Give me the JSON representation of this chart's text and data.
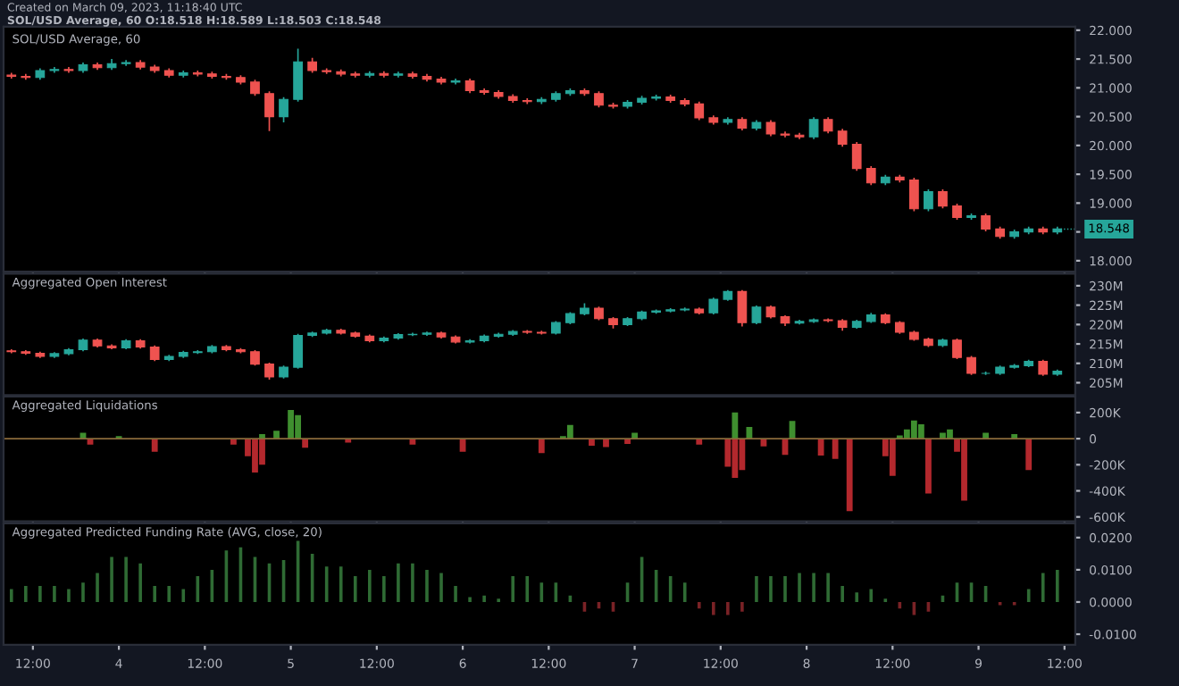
{
  "chart_data": [
    {
      "type": "candlestick",
      "title": "SOL/USD Average, 60",
      "annotations": [
        "Created on March 09, 2023, 11:18:40 UTC",
        "SOL/USD Average, 60 O:18.518 H:18.589 L:18.503 C:18.548",
        {
          "text": "18.548",
          "x": "2023-03-09T11:00",
          "y": 18.548
        }
      ],
      "x": [
        "2023-03-03T09:00",
        "2023-03-03T11:00",
        "2023-03-03T13:00",
        "2023-03-03T15:00",
        "2023-03-03T17:00",
        "2023-03-03T19:00",
        "2023-03-03T21:00",
        "2023-03-03T23:00",
        "2023-03-04T01:00",
        "2023-03-04T03:00",
        "2023-03-04T05:00",
        "2023-03-04T07:00",
        "2023-03-04T09:00",
        "2023-03-04T11:00",
        "2023-03-04T13:00",
        "2023-03-04T15:00",
        "2023-03-04T17:00",
        "2023-03-04T19:00",
        "2023-03-04T21:00",
        "2023-03-04T23:00",
        "2023-03-05T01:00",
        "2023-03-05T03:00",
        "2023-03-05T05:00",
        "2023-03-05T07:00",
        "2023-03-05T09:00",
        "2023-03-05T11:00",
        "2023-03-05T13:00",
        "2023-03-05T15:00",
        "2023-03-05T17:00",
        "2023-03-05T19:00",
        "2023-03-05T21:00",
        "2023-03-05T23:00",
        "2023-03-06T01:00",
        "2023-03-06T03:00",
        "2023-03-06T05:00",
        "2023-03-06T07:00",
        "2023-03-06T09:00",
        "2023-03-06T11:00",
        "2023-03-06T13:00",
        "2023-03-06T15:00",
        "2023-03-06T17:00",
        "2023-03-06T19:00",
        "2023-03-06T21:00",
        "2023-03-06T23:00",
        "2023-03-07T01:00",
        "2023-03-07T03:00",
        "2023-03-07T05:00",
        "2023-03-07T07:00",
        "2023-03-07T09:00",
        "2023-03-07T11:00",
        "2023-03-07T13:00",
        "2023-03-07T15:00",
        "2023-03-07T17:00",
        "2023-03-07T19:00",
        "2023-03-07T21:00",
        "2023-03-07T23:00",
        "2023-03-08T01:00",
        "2023-03-08T03:00",
        "2023-03-08T05:00",
        "2023-03-08T07:00",
        "2023-03-08T09:00",
        "2023-03-08T11:00",
        "2023-03-08T13:00",
        "2023-03-08T15:00",
        "2023-03-08T17:00",
        "2023-03-08T19:00",
        "2023-03-08T21:00",
        "2023-03-08T23:00",
        "2023-03-09T01:00",
        "2023-03-09T03:00",
        "2023-03-09T05:00",
        "2023-03-09T07:00",
        "2023-03-09T09:00",
        "2023-03-09T11:00"
      ],
      "ohlc": [
        [
          21.22,
          21.26,
          21.16,
          21.2
        ],
        [
          21.2,
          21.24,
          21.14,
          21.18
        ],
        [
          21.18,
          21.34,
          21.14,
          21.3
        ],
        [
          21.3,
          21.36,
          21.26,
          21.32
        ],
        [
          21.32,
          21.36,
          21.26,
          21.3
        ],
        [
          21.3,
          21.44,
          21.26,
          21.4
        ],
        [
          21.4,
          21.44,
          21.31,
          21.35
        ],
        [
          21.35,
          21.5,
          21.31,
          21.42
        ],
        [
          21.42,
          21.48,
          21.38,
          21.44
        ],
        [
          21.44,
          21.48,
          21.32,
          21.36
        ],
        [
          21.36,
          21.4,
          21.26,
          21.3
        ],
        [
          21.3,
          21.34,
          21.18,
          21.22
        ],
        [
          21.22,
          21.3,
          21.18,
          21.26
        ],
        [
          21.26,
          21.3,
          21.2,
          21.24
        ],
        [
          21.24,
          21.28,
          21.16,
          21.2
        ],
        [
          21.2,
          21.24,
          21.14,
          21.18
        ],
        [
          21.18,
          21.22,
          21.06,
          21.1
        ],
        [
          21.1,
          21.14,
          20.86,
          20.9
        ],
        [
          20.9,
          20.94,
          20.25,
          20.5
        ],
        [
          20.5,
          20.84,
          20.4,
          20.8
        ],
        [
          20.8,
          21.68,
          20.76,
          21.45
        ],
        [
          21.45,
          21.52,
          21.26,
          21.3
        ],
        [
          21.3,
          21.34,
          21.24,
          21.28
        ],
        [
          21.28,
          21.32,
          21.2,
          21.24
        ],
        [
          21.24,
          21.28,
          21.18,
          21.22
        ],
        [
          21.22,
          21.29,
          21.18,
          21.25
        ],
        [
          21.25,
          21.29,
          21.18,
          21.22
        ],
        [
          21.22,
          21.28,
          21.18,
          21.24
        ],
        [
          21.24,
          21.28,
          21.16,
          21.2
        ],
        [
          21.2,
          21.24,
          21.11,
          21.15
        ],
        [
          21.15,
          21.19,
          21.06,
          21.1
        ],
        [
          21.1,
          21.16,
          21.06,
          21.12
        ],
        [
          21.12,
          21.16,
          20.91,
          20.95
        ],
        [
          20.95,
          20.99,
          20.88,
          20.92
        ],
        [
          20.92,
          20.96,
          20.81,
          20.85
        ],
        [
          20.85,
          20.89,
          20.74,
          20.78
        ],
        [
          20.78,
          20.82,
          20.72,
          20.76
        ],
        [
          20.76,
          20.84,
          20.72,
          20.8
        ],
        [
          20.8,
          20.94,
          20.76,
          20.9
        ],
        [
          20.9,
          20.99,
          20.86,
          20.95
        ],
        [
          20.95,
          20.99,
          20.86,
          20.9
        ],
        [
          20.9,
          20.94,
          20.66,
          20.7
        ],
        [
          20.7,
          20.74,
          20.64,
          20.68
        ],
        [
          20.68,
          20.79,
          20.64,
          20.75
        ],
        [
          20.75,
          20.86,
          20.71,
          20.82
        ],
        [
          20.82,
          20.88,
          20.78,
          20.84
        ],
        [
          20.84,
          20.88,
          20.74,
          20.78
        ],
        [
          20.78,
          20.82,
          20.68,
          20.72
        ],
        [
          20.72,
          20.76,
          20.44,
          20.48
        ],
        [
          20.48,
          20.52,
          20.36,
          20.4
        ],
        [
          20.4,
          20.49,
          20.36,
          20.45
        ],
        [
          20.45,
          20.49,
          20.26,
          20.3
        ],
        [
          20.3,
          20.44,
          20.26,
          20.4
        ],
        [
          20.4,
          20.44,
          20.16,
          20.2
        ],
        [
          20.2,
          20.24,
          20.14,
          20.18
        ],
        [
          20.18,
          20.22,
          20.11,
          20.15
        ],
        [
          20.15,
          20.49,
          20.11,
          20.45
        ],
        [
          20.45,
          20.49,
          20.21,
          20.25
        ],
        [
          20.25,
          20.29,
          19.98,
          20.02
        ],
        [
          20.02,
          20.06,
          19.56,
          19.6
        ],
        [
          19.6,
          19.64,
          19.31,
          19.35
        ],
        [
          19.35,
          19.49,
          19.31,
          19.45
        ],
        [
          19.45,
          19.49,
          19.36,
          19.4
        ],
        [
          19.4,
          19.44,
          18.86,
          18.9
        ],
        [
          18.9,
          19.24,
          18.86,
          19.2
        ],
        [
          19.2,
          19.24,
          18.91,
          18.95
        ],
        [
          18.95,
          18.99,
          18.71,
          18.75
        ],
        [
          18.75,
          18.82,
          18.71,
          18.78
        ],
        [
          18.78,
          18.82,
          18.51,
          18.55
        ],
        [
          18.55,
          18.59,
          18.38,
          18.42
        ],
        [
          18.42,
          18.54,
          18.38,
          18.5
        ],
        [
          18.5,
          18.59,
          18.46,
          18.55
        ],
        [
          18.55,
          18.59,
          18.46,
          18.5
        ],
        [
          18.5,
          18.59,
          18.46,
          18.55
        ]
      ],
      "colors": [
        "#ef5350",
        "#ef5350",
        "#26a69a",
        "#26a69a",
        "#ef5350",
        "#26a69a",
        "#ef5350",
        "#26a69a",
        "#26a69a",
        "#ef5350",
        "#ef5350",
        "#ef5350",
        "#26a69a",
        "#ef5350",
        "#ef5350",
        "#ef5350",
        "#ef5350",
        "#ef5350",
        "#ef5350",
        "#26a69a",
        "#26a69a",
        "#ef5350",
        "#ef5350",
        "#ef5350",
        "#ef5350",
        "#26a69a",
        "#ef5350",
        "#26a69a",
        "#ef5350",
        "#ef5350",
        "#ef5350",
        "#26a69a",
        "#ef5350",
        "#ef5350",
        "#ef5350",
        "#ef5350",
        "#ef5350",
        "#26a69a",
        "#26a69a",
        "#26a69a",
        "#ef5350",
        "#ef5350",
        "#ef5350",
        "#26a69a",
        "#26a69a",
        "#26a69a",
        "#ef5350",
        "#ef5350",
        "#ef5350",
        "#ef5350",
        "#26a69a",
        "#ef5350",
        "#26a69a",
        "#ef5350",
        "#ef5350",
        "#ef5350",
        "#26a69a",
        "#ef5350",
        "#ef5350",
        "#ef5350",
        "#ef5350",
        "#26a69a",
        "#ef5350",
        "#ef5350",
        "#26a69a",
        "#ef5350",
        "#ef5350",
        "#26a69a",
        "#ef5350",
        "#ef5350",
        "#26a69a",
        "#26a69a",
        "#ef5350",
        "#26a69a"
      ],
      "xlim": [
        "2023-03-03T07:54",
        "2023-03-09T13:30"
      ],
      "ylim": [
        17.81,
        22.06
      ],
      "xticks": [
        {
          "value": "2023-03-03T12:00",
          "label": null
        },
        {
          "value": "2023-03-04",
          "label": null
        },
        {
          "value": "2023-03-04T12:00",
          "label": null
        },
        {
          "value": "2023-03-05",
          "label": null
        },
        {
          "value": "2023-03-05T12:00",
          "label": null
        },
        {
          "value": "2023-03-06",
          "label": null
        },
        {
          "value": "2023-03-06T12:00",
          "label": null
        },
        {
          "value": "2023-03-07",
          "label": null
        },
        {
          "value": "2023-03-07T12:00",
          "label": null
        },
        {
          "value": "2023-03-08",
          "label": null
        },
        {
          "value": "2023-03-08T12:00",
          "label": null
        },
        {
          "value": "2023-03-09",
          "label": null
        },
        {
          "value": "2023-03-09T12:00",
          "label": null
        }
      ],
      "yticks": [
        {
          "value": 18,
          "label": "18.000"
        },
        {
          "value": 18.5,
          "label": null
        },
        {
          "value": 19,
          "label": "19.000"
        },
        {
          "value": 19.5,
          "label": "19.500"
        },
        {
          "value": 20,
          "label": "20.000"
        },
        {
          "value": 20.5,
          "label": "20.500"
        },
        {
          "value": 21,
          "label": "21.000"
        },
        {
          "value": 21.5,
          "label": "21.500"
        },
        {
          "value": 22,
          "label": "22.000"
        }
      ],
      "tick_labels": "y",
      "grid": false,
      "legend": false
    },
    {
      "type": "candlestick",
      "title": "Aggregated Open Interest",
      "x": [
        "2023-03-03T09:00",
        "2023-03-03T11:00",
        "2023-03-03T13:00",
        "2023-03-03T15:00",
        "2023-03-03T17:00",
        "2023-03-03T19:00",
        "2023-03-03T21:00",
        "2023-03-03T23:00",
        "2023-03-04T01:00",
        "2023-03-04T03:00",
        "2023-03-04T05:00",
        "2023-03-04T07:00",
        "2023-03-04T09:00",
        "2023-03-04T11:00",
        "2023-03-04T13:00",
        "2023-03-04T15:00",
        "2023-03-04T17:00",
        "2023-03-04T19:00",
        "2023-03-04T21:00",
        "2023-03-04T23:00",
        "2023-03-05T01:00",
        "2023-03-05T03:00",
        "2023-03-05T05:00",
        "2023-03-05T07:00",
        "2023-03-05T09:00",
        "2023-03-05T11:00",
        "2023-03-05T13:00",
        "2023-03-05T15:00",
        "2023-03-05T17:00",
        "2023-03-05T19:00",
        "2023-03-05T21:00",
        "2023-03-05T23:00",
        "2023-03-06T01:00",
        "2023-03-06T03:00",
        "2023-03-06T05:00",
        "2023-03-06T07:00",
        "2023-03-06T09:00",
        "2023-03-06T11:00",
        "2023-03-06T13:00",
        "2023-03-06T15:00",
        "2023-03-06T17:00",
        "2023-03-06T19:00",
        "2023-03-06T21:00",
        "2023-03-06T23:00",
        "2023-03-07T01:00",
        "2023-03-07T03:00",
        "2023-03-07T05:00",
        "2023-03-07T07:00",
        "2023-03-07T09:00",
        "2023-03-07T11:00",
        "2023-03-07T13:00",
        "2023-03-07T15:00",
        "2023-03-07T17:00",
        "2023-03-07T19:00",
        "2023-03-07T21:00",
        "2023-03-07T23:00",
        "2023-03-08T01:00",
        "2023-03-08T03:00",
        "2023-03-08T05:00",
        "2023-03-08T07:00",
        "2023-03-08T09:00",
        "2023-03-08T11:00",
        "2023-03-08T13:00",
        "2023-03-08T15:00",
        "2023-03-08T17:00",
        "2023-03-08T19:00",
        "2023-03-08T21:00",
        "2023-03-08T23:00",
        "2023-03-09T01:00",
        "2023-03-09T03:00",
        "2023-03-09T05:00",
        "2023-03-09T07:00",
        "2023-03-09T09:00",
        "2023-03-09T11:00"
      ],
      "ohlc": [
        [
          213.2,
          213.6,
          212.6,
          213.0
        ],
        [
          213.0,
          213.4,
          212.2,
          212.6
        ],
        [
          212.6,
          213.0,
          211.4,
          211.8
        ],
        [
          211.8,
          212.9,
          211.4,
          212.5
        ],
        [
          212.5,
          213.9,
          212.1,
          213.5
        ],
        [
          213.5,
          216.4,
          213.1,
          216.0
        ],
        [
          216.0,
          216.4,
          214.1,
          214.5
        ],
        [
          214.5,
          214.9,
          213.6,
          214.0
        ],
        [
          214.0,
          216.2,
          213.6,
          215.8
        ],
        [
          215.8,
          216.2,
          213.8,
          214.2
        ],
        [
          214.2,
          214.6,
          210.6,
          211.0
        ],
        [
          211.0,
          212.2,
          210.6,
          211.8
        ],
        [
          211.8,
          213.2,
          211.4,
          212.8
        ],
        [
          212.8,
          213.4,
          212.4,
          213.0
        ],
        [
          213.0,
          214.7,
          212.6,
          214.3
        ],
        [
          214.3,
          214.7,
          213.1,
          213.5
        ],
        [
          213.5,
          213.9,
          212.6,
          213.0
        ],
        [
          213.0,
          213.4,
          209.4,
          209.8
        ],
        [
          209.8,
          210.2,
          205.8,
          206.5
        ],
        [
          206.5,
          209.4,
          206.1,
          209.0
        ],
        [
          209.0,
          217.6,
          208.6,
          217.2
        ],
        [
          217.2,
          218.2,
          216.8,
          217.8
        ],
        [
          217.8,
          218.9,
          217.4,
          218.5
        ],
        [
          218.5,
          218.9,
          217.4,
          217.8
        ],
        [
          217.8,
          218.2,
          216.6,
          217.0
        ],
        [
          217.0,
          217.4,
          215.4,
          215.8
        ],
        [
          215.8,
          216.9,
          215.4,
          216.5
        ],
        [
          216.5,
          217.8,
          216.1,
          217.4
        ],
        [
          217.4,
          217.9,
          217.0,
          217.5
        ],
        [
          217.5,
          218.2,
          217.1,
          217.8
        ],
        [
          217.8,
          218.2,
          216.4,
          216.8
        ],
        [
          216.8,
          217.2,
          215.1,
          215.5
        ],
        [
          215.5,
          216.2,
          215.1,
          215.8
        ],
        [
          215.8,
          217.4,
          215.4,
          217.0
        ],
        [
          217.0,
          217.9,
          216.6,
          217.5
        ],
        [
          217.5,
          218.6,
          217.1,
          218.2
        ],
        [
          218.2,
          218.6,
          217.6,
          218.0
        ],
        [
          218.0,
          218.4,
          217.4,
          217.8
        ],
        [
          217.8,
          220.9,
          217.4,
          220.5
        ],
        [
          220.5,
          223.2,
          220.1,
          222.8
        ],
        [
          222.8,
          225.5,
          222.4,
          224.2
        ],
        [
          224.2,
          224.6,
          221.1,
          221.5
        ],
        [
          221.5,
          221.9,
          219.0,
          220.0
        ],
        [
          220.0,
          221.9,
          219.6,
          221.5
        ],
        [
          221.5,
          223.6,
          221.1,
          223.2
        ],
        [
          223.2,
          223.9,
          222.8,
          223.5
        ],
        [
          223.5,
          224.2,
          223.1,
          223.8
        ],
        [
          223.8,
          224.4,
          223.4,
          224.0
        ],
        [
          224.0,
          224.4,
          222.6,
          223.0
        ],
        [
          223.0,
          226.9,
          222.6,
          226.5
        ],
        [
          226.5,
          228.9,
          226.1,
          228.5
        ],
        [
          228.5,
          228.9,
          219.5,
          220.5
        ],
        [
          220.5,
          224.9,
          220.1,
          224.5
        ],
        [
          224.5,
          224.9,
          221.6,
          222.0
        ],
        [
          222.0,
          222.4,
          219.6,
          220.4
        ],
        [
          220.4,
          221.2,
          220.0,
          220.8
        ],
        [
          220.8,
          221.6,
          220.4,
          221.2
        ],
        [
          221.2,
          221.6,
          220.6,
          221.0
        ],
        [
          221.0,
          221.4,
          218.4,
          219.3
        ],
        [
          219.3,
          221.2,
          218.9,
          220.8
        ],
        [
          220.8,
          223.0,
          220.4,
          222.5
        ],
        [
          222.5,
          222.9,
          220.1,
          220.5
        ],
        [
          220.5,
          220.9,
          217.6,
          218.0
        ],
        [
          218.0,
          218.4,
          215.8,
          216.2
        ],
        [
          216.2,
          216.6,
          214.2,
          214.6
        ],
        [
          214.6,
          216.4,
          214.2,
          216.0
        ],
        [
          216.0,
          216.4,
          211.1,
          211.5
        ],
        [
          211.5,
          211.9,
          207.0,
          207.4
        ],
        [
          207.4,
          207.9,
          207.0,
          207.4
        ],
        [
          207.4,
          209.4,
          207.0,
          209.0
        ],
        [
          209.0,
          209.8,
          208.6,
          209.4
        ],
        [
          209.4,
          210.9,
          209.0,
          210.5
        ],
        [
          210.5,
          210.9,
          206.8,
          207.2
        ],
        [
          207.2,
          208.4,
          206.8,
          208.0
        ]
      ],
      "colors": [
        "#ef5350",
        "#ef5350",
        "#ef5350",
        "#26a69a",
        "#26a69a",
        "#26a69a",
        "#ef5350",
        "#ef5350",
        "#26a69a",
        "#ef5350",
        "#ef5350",
        "#26a69a",
        "#26a69a",
        "#26a69a",
        "#26a69a",
        "#ef5350",
        "#ef5350",
        "#ef5350",
        "#ef5350",
        "#26a69a",
        "#26a69a",
        "#26a69a",
        "#26a69a",
        "#ef5350",
        "#ef5350",
        "#ef5350",
        "#26a69a",
        "#26a69a",
        "#26a69a",
        "#26a69a",
        "#ef5350",
        "#ef5350",
        "#26a69a",
        "#26a69a",
        "#26a69a",
        "#26a69a",
        "#ef5350",
        "#ef5350",
        "#26a69a",
        "#26a69a",
        "#26a69a",
        "#ef5350",
        "#ef5350",
        "#26a69a",
        "#26a69a",
        "#26a69a",
        "#26a69a",
        "#26a69a",
        "#ef5350",
        "#26a69a",
        "#26a69a",
        "#ef5350",
        "#26a69a",
        "#ef5350",
        "#ef5350",
        "#26a69a",
        "#26a69a",
        "#ef5350",
        "#ef5350",
        "#26a69a",
        "#26a69a",
        "#ef5350",
        "#ef5350",
        "#ef5350",
        "#ef5350",
        "#26a69a",
        "#ef5350",
        "#ef5350",
        "#26a69a",
        "#26a69a",
        "#26a69a",
        "#26a69a",
        "#ef5350",
        "#26a69a"
      ],
      "xlim": [
        "2023-03-03T07:54",
        "2023-03-09T13:30"
      ],
      "ylim": [
        201.8,
        233.1
      ],
      "xticks": [
        {
          "value": "2023-03-03T12:00",
          "label": null
        },
        {
          "value": "2023-03-04",
          "label": null
        },
        {
          "value": "2023-03-04T12:00",
          "label": null
        },
        {
          "value": "2023-03-05",
          "label": null
        },
        {
          "value": "2023-03-05T12:00",
          "label": null
        },
        {
          "value": "2023-03-06",
          "label": null
        },
        {
          "value": "2023-03-06T12:00",
          "label": null
        },
        {
          "value": "2023-03-07",
          "label": null
        },
        {
          "value": "2023-03-07T12:00",
          "label": null
        },
        {
          "value": "2023-03-08",
          "label": null
        },
        {
          "value": "2023-03-08T12:00",
          "label": null
        },
        {
          "value": "2023-03-09",
          "label": null
        },
        {
          "value": "2023-03-09T12:00",
          "label": null
        }
      ],
      "yticks": [
        {
          "value": 205,
          "label": "205M"
        },
        {
          "value": 210,
          "label": "210M"
        },
        {
          "value": 215,
          "label": "215M"
        },
        {
          "value": 220,
          "label": "220M"
        },
        {
          "value": 225,
          "label": "225M"
        },
        {
          "value": 230,
          "label": "230M"
        }
      ],
      "tick_labels": "y",
      "grid": false,
      "legend": false
    },
    {
      "type": "bar",
      "title": "Aggregated Liquidations",
      "series": [
        {
          "color": "#3f8f2f",
          "x": [
            "2023-03-03T19:00",
            "2023-03-04T00:00",
            "2023-03-04T20:00",
            "2023-03-04T22:00",
            "2023-03-05T00:00",
            "2023-03-05T01:00",
            "2023-03-06T14:00",
            "2023-03-06T15:00",
            "2023-03-07T00:00",
            "2023-03-07T14:00",
            "2023-03-07T16:00",
            "2023-03-07T22:00",
            "2023-03-08T13:00",
            "2023-03-08T14:00",
            "2023-03-08T15:00",
            "2023-03-08T16:00",
            "2023-03-08T19:00",
            "2023-03-08T20:00",
            "2023-03-09T01:00",
            "2023-03-09T05:00"
          ],
          "values": [
            45,
            20,
            35,
            60,
            220,
            180,
            20,
            105,
            45,
            200,
            90,
            135,
            25,
            70,
            140,
            110,
            45,
            70,
            45,
            35
          ]
        },
        {
          "color": "#b3282d",
          "x": [
            "2023-03-03T20:00",
            "2023-03-04T05:00",
            "2023-03-04T16:00",
            "2023-03-04T18:00",
            "2023-03-04T19:00",
            "2023-03-04T20:00",
            "2023-03-05T02:00",
            "2023-03-05T08:00",
            "2023-03-05T17:00",
            "2023-03-06T00:00",
            "2023-03-06T11:00",
            "2023-03-06T18:00",
            "2023-03-06T20:00",
            "2023-03-06T23:00",
            "2023-03-07T09:00",
            "2023-03-07T13:00",
            "2023-03-07T14:00",
            "2023-03-07T15:00",
            "2023-03-07T18:00",
            "2023-03-07T21:00",
            "2023-03-08T02:00",
            "2023-03-08T04:00",
            "2023-03-08T06:00",
            "2023-03-08T11:00",
            "2023-03-08T12:00",
            "2023-03-08T17:00",
            "2023-03-08T21:00",
            "2023-03-08T22:00",
            "2023-03-09T07:00"
          ],
          "values": [
            -45,
            -100,
            -45,
            -135,
            -260,
            -200,
            -70,
            -30,
            -45,
            -100,
            -110,
            -55,
            -65,
            -40,
            -45,
            -215,
            -300,
            -240,
            -60,
            -125,
            -130,
            -155,
            -555,
            -135,
            -285,
            -420,
            -100,
            -475,
            -240
          ]
        }
      ],
      "ref_lines": [
        {
          "axis": "y",
          "value": 0,
          "color": "#8a6a3a"
        }
      ],
      "xlim": [
        "2023-03-03T07:54",
        "2023-03-09T13:30"
      ],
      "ylim": [
        -634,
        323
      ],
      "xticks": [
        {
          "value": "2023-03-03T12:00",
          "label": null
        },
        {
          "value": "2023-03-04",
          "label": null
        },
        {
          "value": "2023-03-04T12:00",
          "label": null
        },
        {
          "value": "2023-03-05",
          "label": null
        },
        {
          "value": "2023-03-05T12:00",
          "label": null
        },
        {
          "value": "2023-03-06",
          "label": null
        },
        {
          "value": "2023-03-06T12:00",
          "label": null
        },
        {
          "value": "2023-03-07",
          "label": null
        },
        {
          "value": "2023-03-07T12:00",
          "label": null
        },
        {
          "value": "2023-03-08",
          "label": null
        },
        {
          "value": "2023-03-08T12:00",
          "label": null
        },
        {
          "value": "2023-03-09",
          "label": null
        },
        {
          "value": "2023-03-09T12:00",
          "label": null
        }
      ],
      "yticks": [
        {
          "value": -600,
          "label": "-600K"
        },
        {
          "value": -400,
          "label": "-400K"
        },
        {
          "value": -200,
          "label": "-200K"
        },
        0,
        {
          "value": 200,
          "label": "200K"
        }
      ],
      "tick_labels": "y",
      "grid": false,
      "legend": false
    },
    {
      "type": "bar",
      "title": "Aggregated Predicted Funding Rate (AVG, close, 20)",
      "x": [
        "2023-03-03T09:00",
        "2023-03-03T11:00",
        "2023-03-03T13:00",
        "2023-03-03T15:00",
        "2023-03-03T17:00",
        "2023-03-03T19:00",
        "2023-03-03T21:00",
        "2023-03-03T23:00",
        "2023-03-04T01:00",
        "2023-03-04T03:00",
        "2023-03-04T05:00",
        "2023-03-04T07:00",
        "2023-03-04T09:00",
        "2023-03-04T11:00",
        "2023-03-04T13:00",
        "2023-03-04T15:00",
        "2023-03-04T17:00",
        "2023-03-04T19:00",
        "2023-03-04T21:00",
        "2023-03-04T23:00",
        "2023-03-05T01:00",
        "2023-03-05T03:00",
        "2023-03-05T05:00",
        "2023-03-05T07:00",
        "2023-03-05T09:00",
        "2023-03-05T11:00",
        "2023-03-05T13:00",
        "2023-03-05T15:00",
        "2023-03-05T17:00",
        "2023-03-05T19:00",
        "2023-03-05T21:00",
        "2023-03-05T23:00",
        "2023-03-06T01:00",
        "2023-03-06T03:00",
        "2023-03-06T05:00",
        "2023-03-06T07:00",
        "2023-03-06T09:00",
        "2023-03-06T11:00",
        "2023-03-06T13:00",
        "2023-03-06T15:00",
        "2023-03-06T17:00",
        "2023-03-06T19:00",
        "2023-03-06T21:00",
        "2023-03-06T23:00",
        "2023-03-07T01:00",
        "2023-03-07T03:00",
        "2023-03-07T05:00",
        "2023-03-07T07:00",
        "2023-03-07T09:00",
        "2023-03-07T11:00",
        "2023-03-07T13:00",
        "2023-03-07T15:00",
        "2023-03-07T17:00",
        "2023-03-07T19:00",
        "2023-03-07T21:00",
        "2023-03-07T23:00",
        "2023-03-08T01:00",
        "2023-03-08T03:00",
        "2023-03-08T05:00",
        "2023-03-08T07:00",
        "2023-03-08T09:00",
        "2023-03-08T11:00",
        "2023-03-08T13:00",
        "2023-03-08T15:00",
        "2023-03-08T17:00",
        "2023-03-08T19:00",
        "2023-03-08T21:00",
        "2023-03-08T23:00",
        "2023-03-09T01:00",
        "2023-03-09T03:00",
        "2023-03-09T05:00",
        "2023-03-09T07:00",
        "2023-03-09T09:00",
        "2023-03-09T11:00"
      ],
      "series": [
        {
          "color": "#2f6b34",
          "values": [
            0.004,
            0.005,
            0.005,
            0.005,
            0.004,
            0.006,
            0.009,
            0.014,
            0.014,
            0.012,
            0.005,
            0.005,
            0.004,
            0.008,
            0.01,
            0.016,
            0.017,
            0.014,
            0.012,
            0.013,
            0.019,
            0.015,
            0.011,
            0.011,
            0.008,
            0.01,
            0.008,
            0.012,
            0.012,
            0.01,
            0.009,
            0.005,
            0.0015,
            0.002,
            0.001,
            0.008,
            0.008,
            0.006,
            0.006,
            0.002,
            null,
            null,
            null,
            0.006,
            0.014,
            0.01,
            0.008,
            0.006,
            null,
            null,
            null,
            null,
            0.008,
            0.008,
            0.008,
            0.009,
            0.009,
            0.009,
            0.005,
            0.003,
            0.004,
            0.001,
            null,
            null,
            null,
            0.002,
            0.006,
            0.006,
            0.005,
            null,
            null,
            0.004,
            0.009,
            0.01
          ]
        },
        {
          "color": "#7a2226",
          "values": [
            null,
            null,
            null,
            null,
            null,
            null,
            null,
            null,
            null,
            null,
            null,
            null,
            null,
            null,
            null,
            null,
            null,
            null,
            null,
            null,
            null,
            null,
            null,
            null,
            null,
            null,
            null,
            null,
            null,
            null,
            null,
            null,
            null,
            null,
            null,
            null,
            null,
            null,
            null,
            null,
            -0.003,
            -0.002,
            -0.003,
            null,
            null,
            null,
            null,
            null,
            -0.002,
            -0.004,
            -0.004,
            -0.003,
            null,
            null,
            null,
            null,
            null,
            null,
            null,
            null,
            null,
            null,
            -0.002,
            -0.004,
            -0.003,
            null,
            null,
            null,
            null,
            -0.001,
            -0.001,
            null,
            null,
            null
          ]
        }
      ],
      "xlim": [
        "2023-03-03T07:54",
        "2023-03-09T13:30"
      ],
      "ylim": [
        -0.0133,
        0.0244
      ],
      "xticks": [
        {
          "value": "2023-03-03T12:00",
          "label": "12:00"
        },
        {
          "value": "2023-03-04",
          "label": "4"
        },
        {
          "value": "2023-03-04T12:00",
          "label": "12:00"
        },
        {
          "value": "2023-03-05",
          "label": "5"
        },
        {
          "value": "2023-03-05T12:00",
          "label": "12:00"
        },
        {
          "value": "2023-03-06",
          "label": "6"
        },
        {
          "value": "2023-03-06T12:00",
          "label": "12:00"
        },
        {
          "value": "2023-03-07",
          "label": "7"
        },
        {
          "value": "2023-03-07T12:00",
          "label": "12:00"
        },
        {
          "value": "2023-03-08",
          "label": "8"
        },
        {
          "value": "2023-03-08T12:00",
          "label": "12:00"
        },
        {
          "value": "2023-03-09",
          "label": "9"
        },
        {
          "value": "2023-03-09T12:00",
          "label": "12:00"
        }
      ],
      "yticks": [
        {
          "value": -0.01,
          "label": "-0.0100"
        },
        {
          "value": 0,
          "label": "0.0000"
        },
        {
          "value": 0.01,
          "label": "0.0100"
        },
        {
          "value": 0.02,
          "label": "0.0200"
        }
      ],
      "grid": false,
      "legend": false
    }
  ]
}
